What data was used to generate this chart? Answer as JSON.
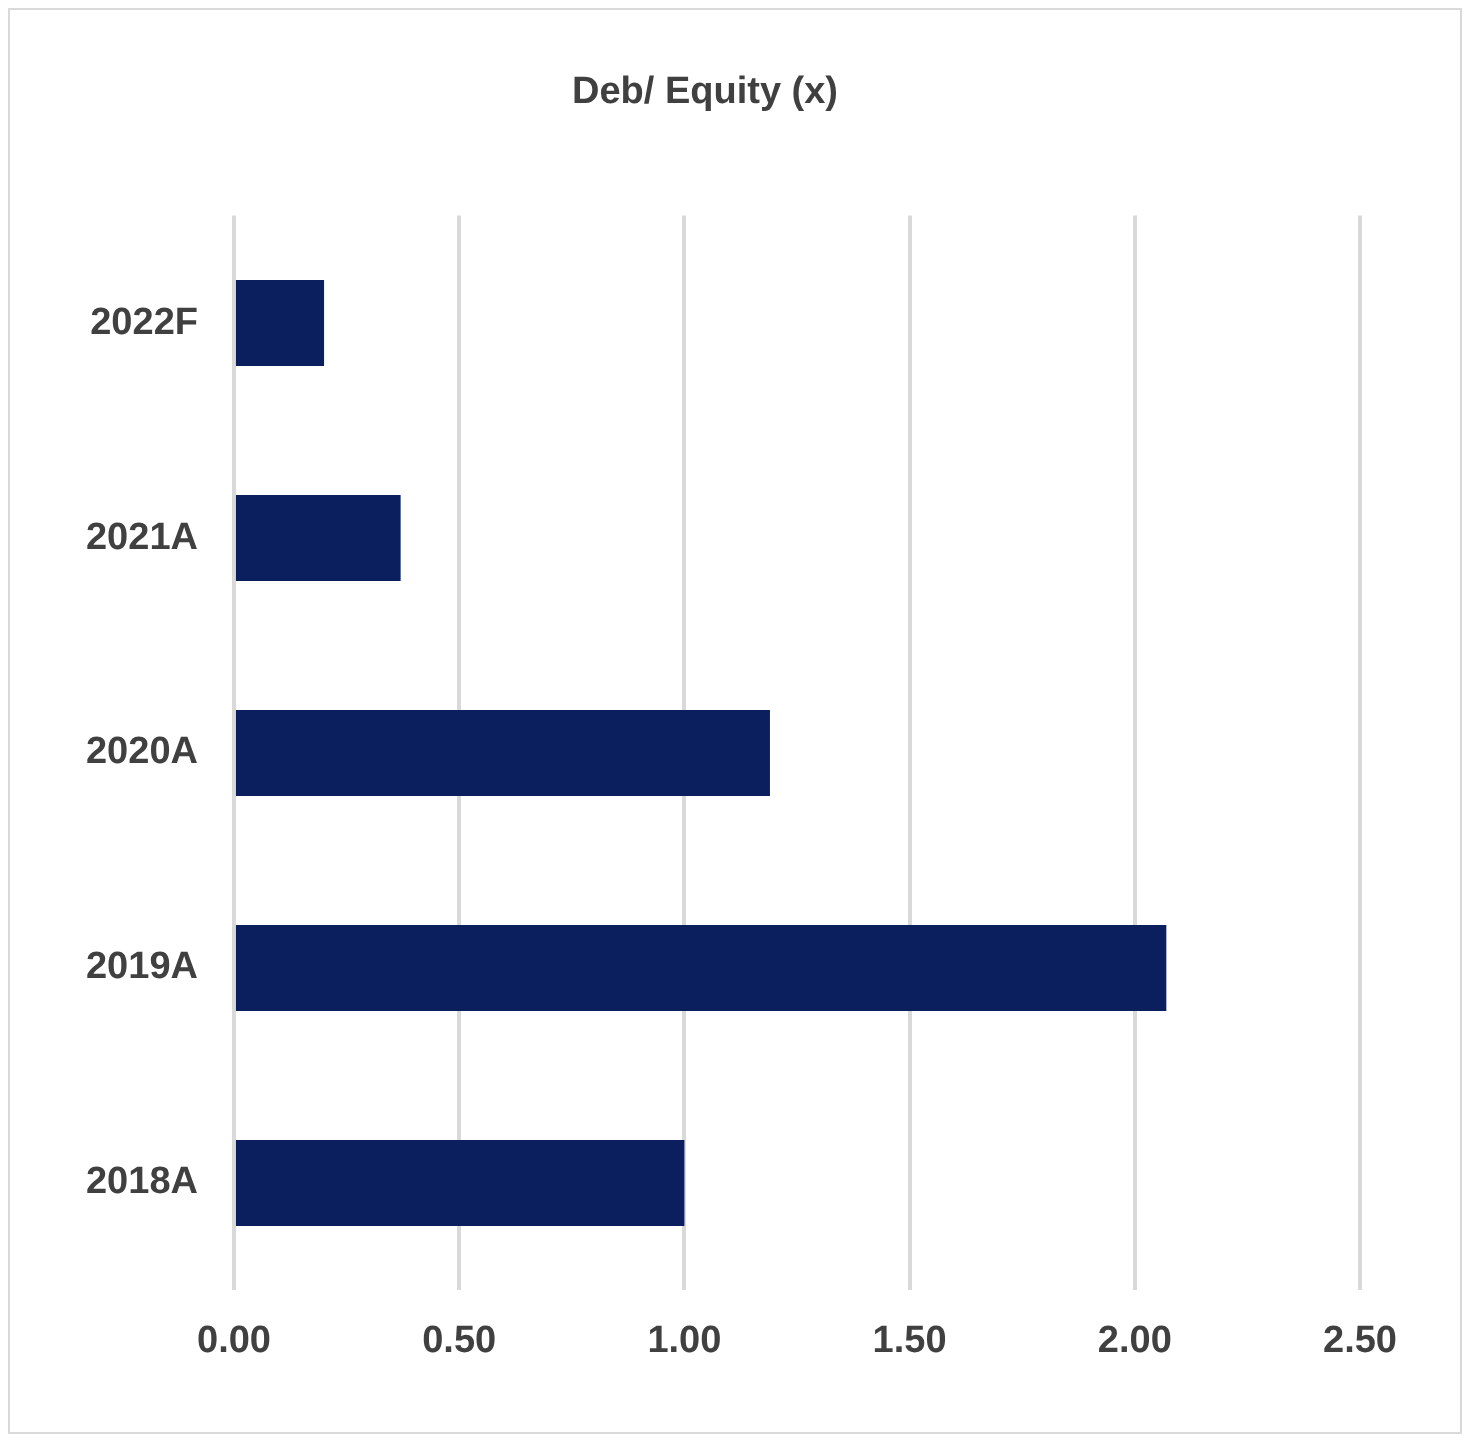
{
  "chart_data": {
    "type": "bar",
    "orientation": "horizontal",
    "title": "Deb/ Equity (x)",
    "categories": [
      "2022F",
      "2021A",
      "2020A",
      "2019A",
      "2018A"
    ],
    "values": [
      0.2,
      0.37,
      1.19,
      2.07,
      1.0
    ],
    "color": "#0b1f5e",
    "xlim": [
      0,
      2.5
    ],
    "xticks": [
      {
        "value": 0,
        "label": "0.00"
      },
      {
        "value": 0.5,
        "label": "0.50"
      },
      {
        "value": 1,
        "label": "1.00"
      },
      {
        "value": 1.5,
        "label": "1.50"
      },
      {
        "value": 2,
        "label": "2.00"
      },
      {
        "value": 2.5,
        "label": "2.50"
      }
    ],
    "grid": "x",
    "legend": false
  }
}
